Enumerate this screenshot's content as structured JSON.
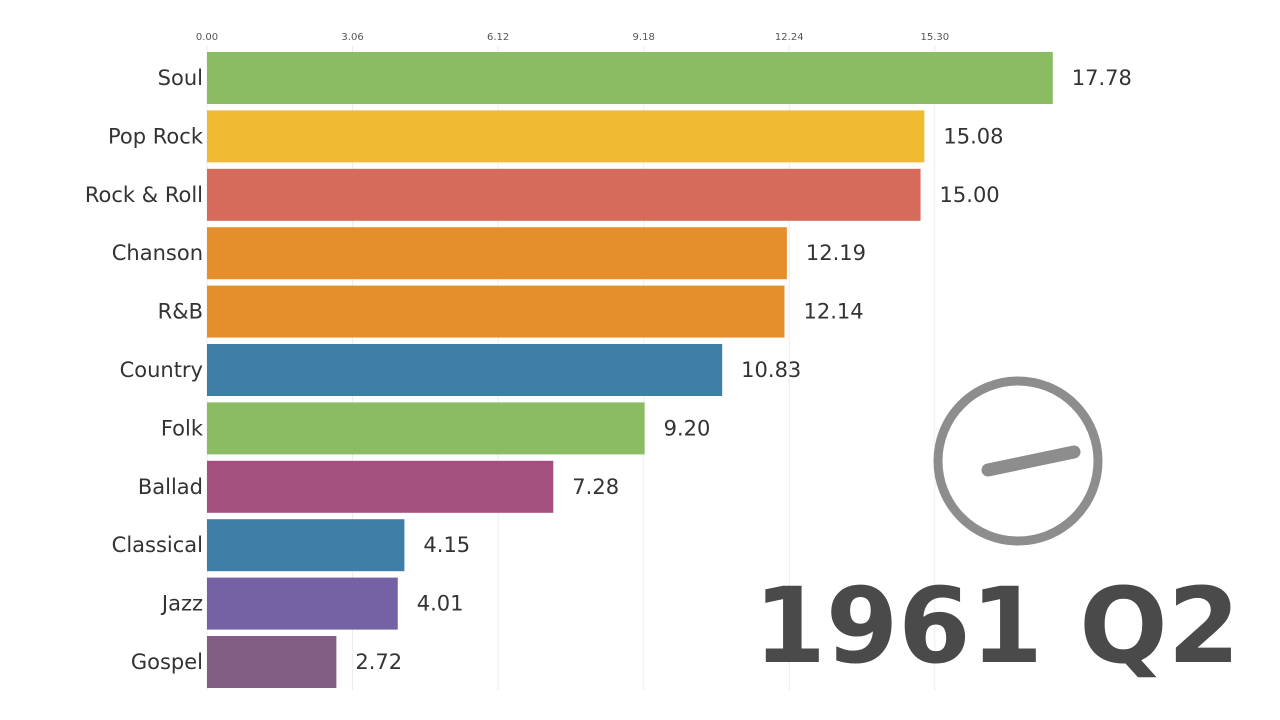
{
  "chart_data": {
    "type": "bar",
    "orientation": "horizontal",
    "period": "1961 Q2",
    "x_ticks": [
      "0.00",
      "3.06",
      "6.12",
      "9.18",
      "12.24",
      "15.30"
    ],
    "xlim": [
      0,
      18
    ],
    "grid": true,
    "categories": [
      "Soul",
      "Pop Rock",
      "Rock & Roll",
      "Chanson",
      "R&B",
      "Country",
      "Folk",
      "Ballad",
      "Classical",
      "Jazz",
      "Gospel"
    ],
    "values": [
      17.78,
      15.08,
      15.0,
      12.19,
      12.14,
      10.83,
      9.2,
      7.28,
      4.15,
      4.01,
      2.72
    ],
    "value_labels": [
      "17.78",
      "15.08",
      "15.00",
      "12.19",
      "12.14",
      "10.83",
      "9.20",
      "7.28",
      "4.15",
      "4.01",
      "2.72"
    ],
    "colors": [
      "#8bbb63",
      "#f0bb30",
      "#d66b5c",
      "#e58f2c",
      "#e58f2c",
      "#3f7ea6",
      "#8bbb63",
      "#a4507e",
      "#3f7ea6",
      "#7562a4",
      "#815e82"
    ],
    "clock_icon": "stopwatch-dial-icon"
  }
}
